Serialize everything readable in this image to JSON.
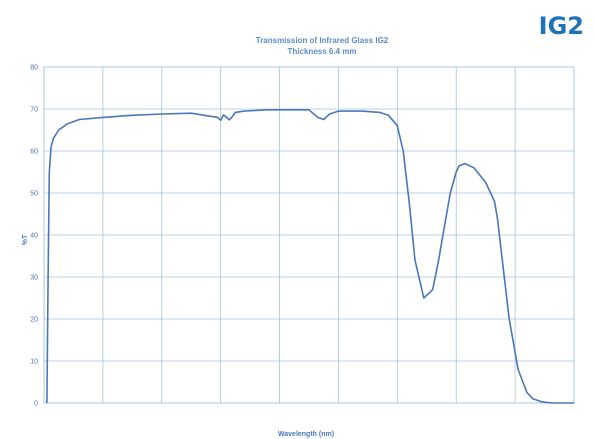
{
  "badge": "IG2",
  "chart_data": {
    "type": "line",
    "title": "Transmission of Infrared Glass IG2",
    "subtitle": "Thickness 6.4 mm",
    "xlabel": "Wavelength (nm)",
    "ylabel": "%T",
    "x_ticks": [
      "",
      "",
      "",
      "",
      "",
      "",
      "",
      "",
      "",
      ""
    ],
    "xlim": [
      0,
      9
    ],
    "ylim": [
      0,
      80
    ],
    "y_ticks": [
      0,
      10,
      20,
      30,
      40,
      50,
      60,
      70,
      80
    ],
    "grid": true,
    "series_color": "#4a77b8",
    "grid_color": "#a9c0de",
    "x": [
      0.05,
      0.07,
      0.09,
      0.12,
      0.16,
      0.25,
      0.4,
      0.6,
      1.0,
      1.5,
      2.0,
      2.5,
      2.95,
      3.0,
      3.05,
      3.15,
      3.2,
      3.25,
      3.4,
      3.8,
      4.2,
      4.5,
      4.65,
      4.75,
      4.85,
      5.0,
      5.4,
      5.7,
      5.85,
      6.0,
      6.1,
      6.2,
      6.3,
      6.45,
      6.6,
      6.7,
      6.8,
      6.9,
      7.0,
      7.05,
      7.15,
      7.3,
      7.5,
      7.65,
      7.7,
      7.8,
      7.9,
      8.05,
      8.2,
      8.3,
      8.45,
      8.55,
      8.65,
      8.75,
      8.85,
      9.0
    ],
    "y": [
      0,
      30,
      55,
      61,
      63,
      65,
      66.5,
      67.5,
      68,
      68.5,
      68.8,
      69,
      68,
      67.3,
      68.6,
      67.4,
      68.2,
      69.2,
      69.5,
      69.8,
      69.8,
      69.8,
      68,
      67.5,
      68.8,
      69.5,
      69.5,
      69.2,
      68.5,
      66,
      60,
      48,
      34,
      25,
      27,
      34,
      42,
      50,
      55,
      56.5,
      57,
      56,
      52.5,
      48,
      44,
      32,
      20,
      8,
      2.5,
      1,
      0.3,
      0.1,
      0,
      0,
      0,
      0
    ]
  }
}
